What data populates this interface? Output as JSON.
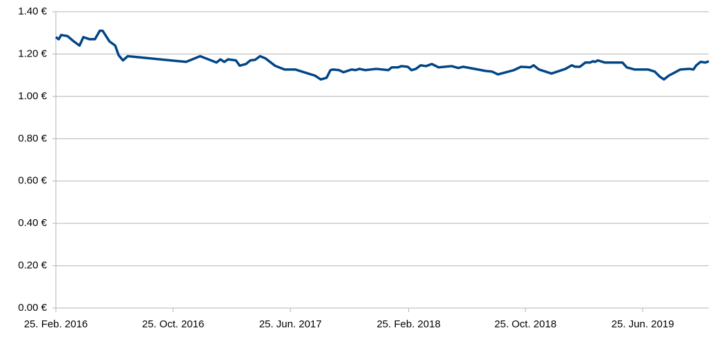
{
  "chart_data": {
    "type": "line",
    "x": [
      "2016-02-25",
      "2016-03-02",
      "2016-03-07",
      "2016-03-20",
      "2016-04-02",
      "2016-04-14",
      "2016-04-22",
      "2016-05-05",
      "2016-05-16",
      "2016-05-26",
      "2016-06-01",
      "2016-06-15",
      "2016-06-27",
      "2016-07-04",
      "2016-07-13",
      "2016-07-23",
      "2016-11-21",
      "2016-12-20",
      "2017-01-23",
      "2017-01-31",
      "2017-02-08",
      "2017-02-16",
      "2017-03-04",
      "2017-03-12",
      "2017-03-25",
      "2017-04-03",
      "2017-04-13",
      "2017-04-23",
      "2017-05-04",
      "2017-05-24",
      "2017-06-13",
      "2017-07-05",
      "2017-07-29",
      "2017-08-15",
      "2017-08-27",
      "2017-09-08",
      "2017-09-16",
      "2017-09-21",
      "2017-10-04",
      "2017-10-13",
      "2017-10-30",
      "2017-11-07",
      "2017-11-15",
      "2017-11-27",
      "2017-12-20",
      "2018-01-14",
      "2018-01-21",
      "2018-02-03",
      "2018-02-10",
      "2018-02-23",
      "2018-03-03",
      "2018-03-12",
      "2018-03-22",
      "2018-04-02",
      "2018-04-14",
      "2018-04-28",
      "2018-05-25",
      "2018-06-08",
      "2018-06-18",
      "2018-08-04",
      "2018-08-17",
      "2018-08-29",
      "2018-10-01",
      "2018-10-16",
      "2018-11-04",
      "2018-11-11",
      "2018-11-22",
      "2018-12-18",
      "2019-01-16",
      "2019-01-29",
      "2019-02-05",
      "2019-02-15",
      "2019-02-26",
      "2019-03-08",
      "2019-03-14",
      "2019-03-18",
      "2019-03-24",
      "2019-04-07",
      "2019-05-14",
      "2019-05-23",
      "2019-06-08",
      "2019-07-06",
      "2019-07-20",
      "2019-07-30",
      "2019-08-08",
      "2019-08-18",
      "2019-08-28",
      "2019-09-11",
      "2019-09-30",
      "2019-10-08",
      "2019-10-14",
      "2019-10-23",
      "2019-11-02",
      "2019-11-09"
    ],
    "series": [
      {
        "color": "#004586",
        "values": [
          1.28,
          1.27,
          1.29,
          1.285,
          1.26,
          1.24,
          1.28,
          1.27,
          1.27,
          1.31,
          1.31,
          1.26,
          1.24,
          1.195,
          1.17,
          1.19,
          1.163,
          1.19,
          1.16,
          1.175,
          1.163,
          1.175,
          1.17,
          1.145,
          1.153,
          1.17,
          1.173,
          1.19,
          1.18,
          1.145,
          1.127,
          1.127,
          1.11,
          1.098,
          1.08,
          1.088,
          1.124,
          1.127,
          1.124,
          1.114,
          1.127,
          1.124,
          1.13,
          1.124,
          1.13,
          1.124,
          1.137,
          1.137,
          1.143,
          1.14,
          1.124,
          1.13,
          1.147,
          1.143,
          1.153,
          1.137,
          1.143,
          1.134,
          1.14,
          1.12,
          1.117,
          1.104,
          1.124,
          1.14,
          1.137,
          1.147,
          1.127,
          1.108,
          1.13,
          1.147,
          1.14,
          1.14,
          1.16,
          1.16,
          1.166,
          1.163,
          1.17,
          1.16,
          1.16,
          1.137,
          1.127,
          1.127,
          1.117,
          1.094,
          1.08,
          1.098,
          1.11,
          1.127,
          1.13,
          1.127,
          1.147,
          1.163,
          1.16,
          1.166
        ]
      }
    ],
    "xlim": [
      "2016-02-25",
      "2019-11-09"
    ],
    "xticks": [
      {
        "value": "2016-02-25",
        "label": "25. Feb. 2016"
      },
      {
        "value": "2016-10-25",
        "label": "25. Oct. 2016"
      },
      {
        "value": "2017-06-25",
        "label": "25. Jun. 2017"
      },
      {
        "value": "2018-02-25",
        "label": "25. Feb. 2018"
      },
      {
        "value": "2018-10-25",
        "label": "25. Oct. 2018"
      },
      {
        "value": "2019-06-25",
        "label": "25. Jun. 2019"
      }
    ],
    "ylim": [
      0,
      1.4
    ],
    "yticks": [
      {
        "value": 0,
        "label": "0.00 €"
      },
      {
        "value": 0.2,
        "label": "0.20 €"
      },
      {
        "value": 0.4,
        "label": "0.40 €"
      },
      {
        "value": 0.6,
        "label": "0.60 €"
      },
      {
        "value": 0.8,
        "label": "0.80 €"
      },
      {
        "value": 1,
        "label": "1.00 €"
      },
      {
        "value": 1.2,
        "label": "1.20 €"
      },
      {
        "value": 1.4,
        "label": "1.40 €"
      }
    ],
    "grid": true
  }
}
